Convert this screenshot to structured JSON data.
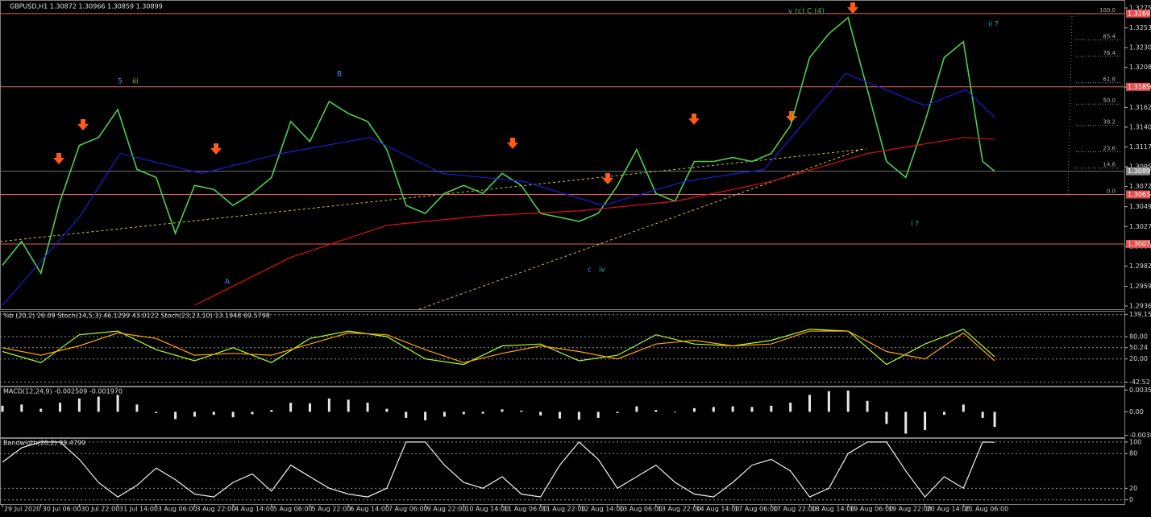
{
  "chart_data": [
    {
      "type": "line",
      "title": "GBPUSD,H1  1.30872 1.30966 1.30859 1.30899",
      "xlim": [
        -1,
        467
      ],
      "ylim": [
        1.29338,
        1.3281
      ],
      "yticks": [
        1.32755,
        {
          "value": 1.3253,
          "label": "1.32530"
        },
        1.32305,
        {
          "value": 1.3208,
          "label": "1.32080"
        },
        1.31855,
        1.31625,
        {
          "value": 1.314,
          "label": "1.31400"
        },
        1.31175,
        {
          "value": 1.3095,
          "label": "1.30950"
        },
        1.30725,
        1.30495,
        {
          "value": 1.3027,
          "label": "1.30270"
        },
        1.30045,
        {
          "value": 1.2982,
          "label": "1.29820"
        },
        {
          "value": 1.2959,
          "label": "1.29590"
        },
        1.29365
      ],
      "xticks": [
        {
          "value": 0,
          "label": "29 Jul 2020"
        },
        {
          "value": 16,
          "label": "30 Jul 06:00"
        },
        {
          "value": 32,
          "label": "30 Jul 22:00"
        },
        {
          "value": 48,
          "label": "31 Jul 14:00"
        },
        {
          "value": 64,
          "label": "3 Aug 06:00"
        },
        {
          "value": 80,
          "label": "3 Aug 22:00"
        },
        {
          "value": 96,
          "label": "4 Aug 14:00"
        },
        {
          "value": 112,
          "label": "5 Aug 06:00"
        },
        {
          "value": 128,
          "label": "5 Aug 22:00"
        },
        {
          "value": 144,
          "label": "6 Aug 14:00"
        },
        {
          "value": 160,
          "label": "7 Aug 06:00"
        },
        {
          "value": 176,
          "label": "9 Aug 22:00"
        },
        {
          "value": 192,
          "label": "10 Aug 14:00"
        },
        {
          "value": 208,
          "label": "11 Aug 06:00"
        },
        {
          "value": 224,
          "label": "11 Aug 22:00"
        },
        {
          "value": 240,
          "label": "12 Aug 14:00"
        },
        {
          "value": 256,
          "label": "13 Aug 06:00"
        },
        {
          "value": 272,
          "label": "13 Aug 22:00"
        },
        {
          "value": 288,
          "label": "14 Aug 14:00"
        },
        {
          "value": 304,
          "label": "17 Aug 06:00"
        },
        {
          "value": 320,
          "label": "17 Aug 22:00"
        },
        {
          "value": 336,
          "label": "18 Aug 14:00"
        },
        {
          "value": 352,
          "label": "19 Aug 06:00"
        },
        {
          "value": 368,
          "label": "19 Aug 22:00"
        },
        {
          "value": 384,
          "label": "20 Aug 14:00"
        },
        {
          "value": 400,
          "label": "21 Aug 06:00"
        }
      ],
      "series": [
        {
          "color": "#4ccf4c",
          "x": [
            0,
            8,
            16,
            24,
            32,
            40,
            48,
            56,
            64,
            72,
            80,
            88,
            96,
            104,
            112,
            120,
            128,
            136,
            144,
            152,
            160,
            168,
            176,
            184,
            192,
            200,
            208,
            216,
            224,
            232,
            240,
            248,
            256,
            264,
            272,
            280,
            288,
            296,
            304,
            312,
            320,
            328,
            336,
            344,
            352,
            360,
            368,
            376,
            384,
            392,
            400,
            408,
            413
          ],
          "values": [
            1.29829,
            1.30101,
            1.29738,
            1.30556,
            1.31192,
            1.31283,
            1.31601,
            1.30919,
            1.30828,
            1.30192,
            1.30737,
            1.30692,
            1.3051,
            1.30646,
            1.30828,
            1.31464,
            1.31237,
            1.31692,
            1.31555,
            1.31464,
            1.31146,
            1.3051,
            1.30419,
            1.30646,
            1.30737,
            1.30646,
            1.30874,
            1.30737,
            1.30419,
            1.30374,
            1.30328,
            1.30419,
            1.30737,
            1.31146,
            1.30646,
            1.30556,
            1.3101,
            1.3101,
            1.31055,
            1.3101,
            1.31101,
            1.31419,
            1.32192,
            1.32464,
            1.32646,
            1.31828,
            1.3101,
            1.30828,
            1.31464,
            1.32192,
            1.32373,
            1.3101,
            1.30899
          ]
        },
        {
          "color": "#e01010",
          "x": [
            80,
            120,
            160,
            200,
            240,
            280,
            320,
            360,
            400,
            413
          ],
          "values": [
            1.29374,
            1.29919,
            1.30283,
            1.30392,
            1.30447,
            1.30556,
            1.30783,
            1.31101,
            1.31283,
            1.31264
          ]
        },
        {
          "color": "#1c1cd8",
          "x": [
            0,
            32,
            49,
            83,
            116,
            153,
            183,
            217,
            250,
            284,
            317,
            351,
            384,
            401,
            413
          ],
          "values": [
            1.29374,
            1.30374,
            1.31101,
            1.30874,
            1.31101,
            1.31283,
            1.30874,
            1.30783,
            1.3051,
            1.30783,
            1.30919,
            1.3201,
            1.31646,
            1.31828,
            1.3151
          ]
        }
      ],
      "levels": [
        1.32692,
        1.31859,
        1.30634,
        1.30071
      ],
      "last_price": 1.30899,
      "fib": [
        {
          "value": 100,
          "label": "100.0"
        },
        85.4,
        76.4,
        61.8,
        {
          "value": 50,
          "label": "50.0"
        },
        38.2,
        23.6,
        14.6,
        {
          "value": 0,
          "label": "0.0"
        }
      ],
      "annotations": [
        "v (c) C (4)",
        "5",
        "iii",
        "B",
        "A",
        "c",
        "iv",
        "ii ?",
        "i ?"
      ]
    },
    {
      "type": "line",
      "title": "%b (20,2) 26.09  Stoch(14,5,3) 46.1299 43.0122  Stoch(23,23,10) 13.1948 69.5798",
      "ylim": [
        -50,
        145
      ],
      "grid": true,
      "yticks": [
        139.15,
        {
          "value": 80,
          "label": "80.00"
        },
        50.24,
        {
          "value": 20,
          "label": "20.00"
        },
        -42.52
      ],
      "series": [
        {
          "color": "#adff2f",
          "x": [
            0,
            16,
            32,
            48,
            64,
            80,
            96,
            112,
            128,
            144,
            160,
            176,
            192,
            208,
            224,
            240,
            256,
            272,
            288,
            304,
            320,
            336,
            352,
            368,
            384,
            400,
            413
          ],
          "values": [
            40,
            10,
            85,
            95,
            45,
            15,
            50,
            10,
            75,
            95,
            80,
            20,
            5,
            55,
            60,
            15,
            30,
            85,
            60,
            55,
            70,
            100,
            95,
            5,
            60,
            100,
            26.09
          ]
        },
        {
          "color": "#ffa500",
          "x": [
            0,
            16,
            32,
            48,
            64,
            80,
            96,
            112,
            128,
            144,
            160,
            176,
            192,
            208,
            224,
            240,
            256,
            272,
            288,
            304,
            320,
            336,
            352,
            368,
            384,
            400,
            413
          ],
          "values": [
            50,
            30,
            55,
            90,
            75,
            30,
            35,
            30,
            60,
            90,
            85,
            45,
            10,
            35,
            55,
            40,
            20,
            60,
            70,
            55,
            60,
            95,
            95,
            40,
            20,
            90,
            15
          ]
        }
      ]
    },
    {
      "type": "bar",
      "title": "MACD(12,24,9) -0.002509 -0.001970",
      "ylim": [
        -0.0042,
        0.0039
      ],
      "color": "#e8e8e8",
      "yticks": [
        0.003594,
        {
          "value": 0,
          "label": "0.00"
        },
        -0.003883
      ],
      "x": [
        0,
        8,
        16,
        24,
        32,
        40,
        48,
        56,
        64,
        72,
        80,
        88,
        96,
        104,
        112,
        120,
        128,
        136,
        144,
        152,
        160,
        168,
        176,
        184,
        192,
        200,
        208,
        216,
        224,
        232,
        240,
        248,
        256,
        264,
        272,
        280,
        288,
        296,
        304,
        312,
        320,
        328,
        336,
        344,
        352,
        360,
        368,
        376,
        384,
        392,
        400,
        408,
        413
      ],
      "values": [
        0.001,
        0.0012,
        0.0005,
        0.0015,
        0.0022,
        0.0025,
        0.0028,
        0.0012,
        -0.0002,
        -0.0012,
        -0.0008,
        -0.0005,
        -0.0009,
        -0.0004,
        0.0003,
        0.0015,
        0.0014,
        0.0022,
        0.002,
        0.0015,
        0.0005,
        -0.001,
        -0.0014,
        -0.0008,
        -0.0004,
        -0.0003,
        0.0004,
        0.0002,
        -0.0006,
        -0.0011,
        -0.0013,
        -0.001,
        -0.0002,
        0.0009,
        0.0003,
        -0.0001,
        0.0006,
        0.0008,
        0.0009,
        0.0008,
        0.001,
        0.0015,
        0.0028,
        0.0034,
        0.0035,
        0.0018,
        -0.002,
        -0.0036,
        -0.003,
        -0.0005,
        0.0012,
        -0.001,
        -0.0025
      ]
    },
    {
      "type": "line",
      "title": "Bandwidth(20,2) 99.4799",
      "ylim": [
        -6,
        104
      ],
      "grid": true,
      "yticks": [
        100,
        80,
        20,
        0
      ],
      "series": [
        {
          "color": "#f0f0f0",
          "x": [
            0,
            8,
            16,
            24,
            32,
            40,
            48,
            56,
            64,
            72,
            80,
            88,
            96,
            104,
            112,
            120,
            128,
            136,
            144,
            152,
            160,
            168,
            176,
            184,
            192,
            200,
            208,
            216,
            224,
            232,
            240,
            248,
            256,
            264,
            272,
            280,
            288,
            296,
            304,
            312,
            320,
            328,
            336,
            344,
            352,
            360,
            368,
            376,
            384,
            392,
            400,
            408,
            413
          ],
          "values": [
            65,
            90,
            100,
            100,
            70,
            30,
            5,
            25,
            55,
            35,
            10,
            5,
            30,
            45,
            15,
            60,
            40,
            20,
            10,
            5,
            20,
            100,
            100,
            60,
            30,
            20,
            40,
            10,
            5,
            60,
            100,
            70,
            20,
            40,
            60,
            30,
            10,
            5,
            30,
            60,
            70,
            50,
            5,
            20,
            80,
            100,
            100,
            50,
            5,
            40,
            20,
            100,
            99.4799
          ]
        }
      ]
    }
  ]
}
